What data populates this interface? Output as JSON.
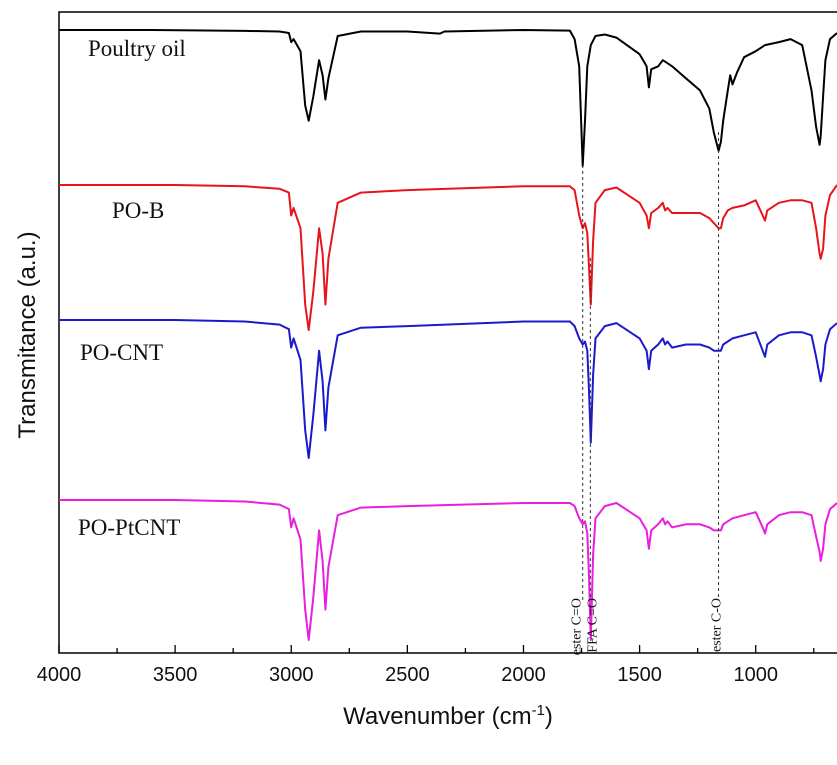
{
  "chart_data": {
    "type": "line",
    "title": "",
    "xlabel": "Wavenumber (cm",
    "xlabel_sup": "-1",
    "xlabel_close": ")",
    "ylabel": "Transmitance (a.u.)",
    "xlim": [
      4000,
      650
    ],
    "x_reversed": true,
    "grid": false,
    "x_ticks": [
      {
        "value": 4000,
        "label": "4000"
      },
      {
        "value": 3500,
        "label": "3500"
      },
      {
        "value": 3000,
        "label": "3000"
      },
      {
        "value": 2500,
        "label": "2500"
      },
      {
        "value": 2000,
        "label": "2000"
      },
      {
        "value": 1500,
        "label": "1500"
      },
      {
        "value": 1000,
        "label": "1000"
      }
    ],
    "series": [
      {
        "name": "Poultry oil",
        "color": "#000000",
        "x": [
          4000,
          3600,
          3200,
          3050,
          3010,
          3000,
          2990,
          2960,
          2940,
          2925,
          2905,
          2880,
          2865,
          2853,
          2840,
          2800,
          2700,
          2500,
          2360,
          2340,
          2000,
          1800,
          1780,
          1760,
          1745,
          1735,
          1725,
          1710,
          1690,
          1650,
          1600,
          1500,
          1470,
          1460,
          1450,
          1420,
          1400,
          1380,
          1360,
          1300,
          1240,
          1200,
          1180,
          1160,
          1150,
          1140,
          1120,
          1110,
          1100,
          1080,
          1050,
          1000,
          960,
          900,
          850,
          800,
          760,
          740,
          725,
          720,
          710,
          700,
          680,
          650
        ],
        "y": [
          100,
          100,
          99.7,
          99.5,
          99,
          96,
          97,
          93,
          75,
          70,
          78,
          90,
          85,
          77,
          84,
          98,
          99.5,
          99.5,
          98.8,
          99.5,
          100,
          99.8,
          97,
          88,
          55,
          70,
          88,
          95,
          98,
          98.5,
          97.5,
          92,
          88,
          81,
          87,
          88,
          90,
          89,
          88,
          84,
          80,
          74,
          66,
          60,
          63,
          70,
          80,
          85,
          82,
          86,
          91,
          93,
          95,
          96,
          97,
          95,
          80,
          68,
          62,
          65,
          78,
          90,
          97,
          99
        ]
      },
      {
        "name": "PO-B",
        "color": "#e8141b",
        "x": [
          4000,
          3500,
          3200,
          3050,
          3010,
          3000,
          2990,
          2960,
          2940,
          2925,
          2905,
          2880,
          2865,
          2853,
          2840,
          2800,
          2700,
          2500,
          2000,
          1800,
          1780,
          1760,
          1745,
          1735,
          1725,
          1718,
          1710,
          1700,
          1690,
          1650,
          1600,
          1500,
          1470,
          1460,
          1450,
          1420,
          1400,
          1390,
          1380,
          1360,
          1300,
          1240,
          1200,
          1180,
          1160,
          1150,
          1140,
          1120,
          1100,
          1050,
          1000,
          970,
          960,
          950,
          900,
          850,
          800,
          760,
          740,
          725,
          720,
          710,
          700,
          680,
          650
        ],
        "y": [
          97,
          97,
          96.5,
          95.5,
          94,
          85,
          88,
          80,
          50,
          40,
          55,
          80,
          70,
          50,
          68,
          90,
          94,
          95,
          96.5,
          96.5,
          95,
          85,
          80,
          82,
          78,
          65,
          50,
          75,
          90,
          95,
          96,
          90,
          85,
          80,
          86,
          88,
          90,
          87,
          88,
          86,
          86,
          86,
          84,
          82,
          80,
          80,
          84,
          87,
          88,
          89,
          91,
          85,
          83,
          87,
          90,
          91,
          91,
          90,
          80,
          70,
          68,
          72,
          85,
          93,
          97
        ]
      },
      {
        "name": "PO-CNT",
        "color": "#1a1acc",
        "x": [
          4000,
          3500,
          3200,
          3050,
          3010,
          3000,
          2990,
          2960,
          2940,
          2925,
          2905,
          2880,
          2865,
          2853,
          2840,
          2800,
          2700,
          2500,
          2000,
          1800,
          1780,
          1760,
          1745,
          1735,
          1725,
          1718,
          1710,
          1700,
          1690,
          1650,
          1600,
          1500,
          1470,
          1460,
          1450,
          1420,
          1400,
          1390,
          1380,
          1360,
          1300,
          1240,
          1200,
          1180,
          1160,
          1150,
          1140,
          1120,
          1100,
          1050,
          1000,
          970,
          960,
          950,
          900,
          850,
          800,
          760,
          740,
          725,
          720,
          710,
          700,
          680,
          650
        ],
        "y": [
          78,
          78,
          77.5,
          76.5,
          75,
          69,
          72,
          65,
          42,
          33,
          47,
          68,
          58,
          42,
          56,
          73,
          75.5,
          76,
          77.5,
          77.5,
          76,
          72,
          70,
          71,
          68,
          55,
          38,
          60,
          72,
          76,
          77,
          72,
          68,
          62,
          68,
          70,
          72,
          70,
          71,
          69,
          70,
          70,
          69,
          68,
          68,
          68,
          70,
          71,
          72,
          73,
          74,
          68,
          66,
          70,
          73,
          74,
          74,
          73,
          66,
          60,
          58,
          62,
          70,
          75,
          77
        ]
      },
      {
        "name": "PO-PtCNT",
        "color": "#e81ee0",
        "x": [
          4000,
          3500,
          3200,
          3050,
          3010,
          3000,
          2990,
          2960,
          2940,
          2925,
          2905,
          2880,
          2865,
          2853,
          2840,
          2800,
          2700,
          2500,
          2000,
          1800,
          1780,
          1760,
          1745,
          1735,
          1725,
          1718,
          1710,
          1700,
          1690,
          1650,
          1600,
          1500,
          1470,
          1460,
          1450,
          1420,
          1400,
          1390,
          1380,
          1360,
          1300,
          1240,
          1200,
          1180,
          1160,
          1150,
          1140,
          1120,
          1100,
          1050,
          1000,
          970,
          960,
          950,
          900,
          850,
          800,
          760,
          740,
          725,
          720,
          710,
          700,
          680,
          650
        ],
        "y": [
          58,
          58,
          57.5,
          56.5,
          55,
          49,
          52,
          45,
          22,
          12,
          26,
          48,
          38,
          22,
          36,
          53,
          55.5,
          56,
          57,
          57,
          56,
          52,
          50,
          51,
          47,
          33,
          12,
          40,
          52,
          56,
          57,
          52,
          48,
          42,
          48,
          50,
          52,
          50,
          51,
          49,
          50,
          50,
          49,
          48,
          48,
          48,
          50,
          51,
          52,
          53,
          54,
          49,
          47,
          50,
          53,
          54,
          54,
          53,
          46,
          41,
          38,
          42,
          50,
          55,
          57
        ]
      }
    ],
    "annotations": [
      {
        "x": 1745,
        "label": "ester C=O"
      },
      {
        "x": 1712,
        "label": "FFA C=O"
      },
      {
        "x": 1160,
        "label": "ester C-O"
      }
    ]
  }
}
